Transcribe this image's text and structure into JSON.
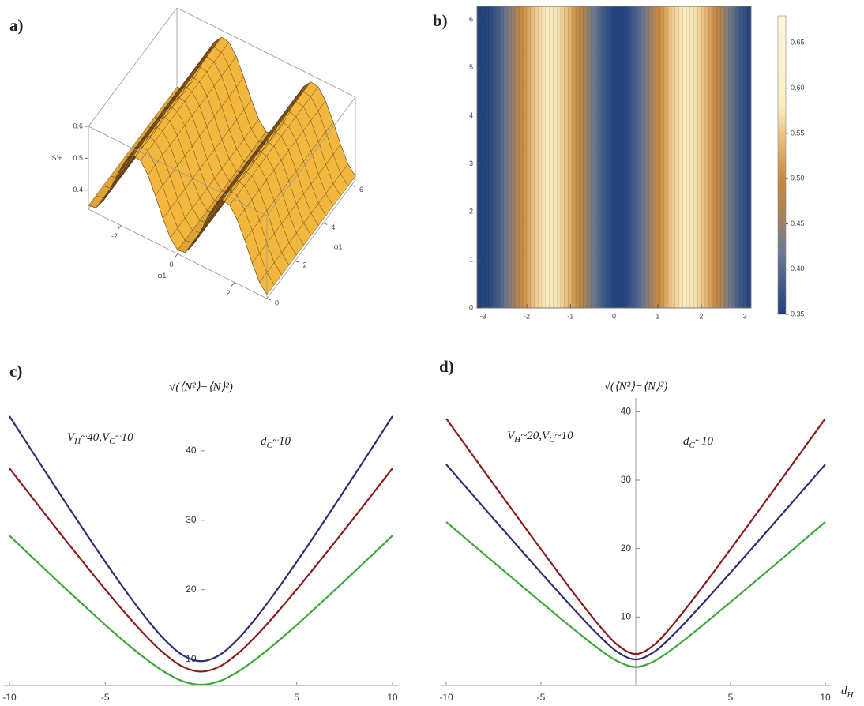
{
  "chart_data": [
    {
      "type": "surface",
      "label": "a)",
      "x": [
        -3.14,
        -2.88,
        -2.62,
        -2.36,
        -2.09,
        -1.83,
        -1.57,
        -1.31,
        -1.05,
        -0.79,
        -0.52,
        -0.26,
        0,
        0.26,
        0.52,
        0.79,
        1.05,
        1.31,
        1.57,
        1.83,
        2.09,
        2.36,
        2.62,
        2.88,
        3.14
      ],
      "values": [
        0.352,
        0.356,
        0.389,
        0.442,
        0.502,
        0.551,
        0.578,
        0.574,
        0.541,
        0.488,
        0.428,
        0.379,
        0.352,
        0.356,
        0.389,
        0.442,
        0.502,
        0.551,
        0.578,
        0.574,
        0.541,
        0.488,
        0.428,
        0.379,
        0.352
      ],
      "xlim": [
        -3.14,
        3.14
      ],
      "ylim": [
        0,
        6.28
      ],
      "zlim": [
        0.34,
        0.6
      ],
      "xticks": [
        -2,
        0,
        2
      ],
      "yticks": [
        0,
        2,
        4,
        6
      ],
      "zticks": [
        0.4,
        0.5,
        0.6
      ],
      "xlabel": "φ1",
      "ylabel": "φ1",
      "zlabel": "S'+",
      "color": "#f4b73e"
    },
    {
      "type": "density",
      "label": "b)",
      "x": [
        -3.14,
        -2.88,
        -2.62,
        -2.36,
        -2.09,
        -1.83,
        -1.57,
        -1.31,
        -1.05,
        -0.79,
        -0.52,
        -0.26,
        0,
        0.26,
        0.52,
        0.79,
        1.05,
        1.31,
        1.57,
        1.83,
        2.09,
        2.36,
        2.62,
        2.88,
        3.14
      ],
      "values": [
        0.352,
        0.356,
        0.389,
        0.442,
        0.502,
        0.551,
        0.578,
        0.574,
        0.541,
        0.488,
        0.428,
        0.379,
        0.352,
        0.356,
        0.389,
        0.442,
        0.502,
        0.551,
        0.578,
        0.574,
        0.541,
        0.488,
        0.428,
        0.379,
        0.352
      ],
      "xlim": [
        -3.14,
        3.14
      ],
      "ylim": [
        0,
        6.28
      ],
      "xticks": [
        -3,
        -2,
        -1,
        0,
        1,
        2,
        3
      ],
      "yticks": [
        0,
        1,
        2,
        3,
        4,
        5,
        6
      ],
      "clim": [
        0.35,
        0.68
      ],
      "cticks": [
        0.35,
        {
          "value": 0.4,
          "label": "0.40"
        },
        0.45,
        {
          "value": 0.5,
          "label": "0.50"
        },
        0.55,
        {
          "value": 0.6,
          "label": "0.60"
        },
        0.65
      ],
      "colorscale": [
        [
          0.35,
          "#1f417d"
        ],
        [
          0.42,
          "#6f7a92"
        ],
        [
          0.46,
          "#a8825a"
        ],
        [
          0.5,
          "#c98a3e"
        ],
        [
          0.55,
          "#eec586"
        ],
        [
          0.58,
          "#fbefc3"
        ],
        [
          0.68,
          "#fdf6da"
        ]
      ]
    },
    {
      "type": "line",
      "label": "c)",
      "x": [
        -10,
        -9,
        -8,
        -7,
        -6,
        -5,
        -4,
        -3,
        -2,
        -1,
        0,
        1,
        2,
        3,
        4,
        5,
        6,
        7,
        8,
        9,
        10
      ],
      "series": [
        {
          "color": "#2e2f6e",
          "values": [
            45.0,
            40.72,
            36.47,
            32.25,
            28.09,
            24.02,
            20.08,
            16.37,
            13.09,
            10.65,
            9.7,
            10.65,
            13.09,
            16.37,
            20.08,
            24.02,
            28.09,
            32.25,
            36.47,
            40.72,
            45.0
          ]
        },
        {
          "color": "#8c1c1c",
          "values": [
            37.5,
            33.94,
            30.4,
            26.89,
            23.44,
            20.05,
            16.78,
            13.7,
            10.99,
            8.98,
            8.2,
            8.98,
            10.99,
            13.7,
            16.78,
            20.05,
            23.44,
            26.89,
            30.4,
            33.94,
            37.5
          ]
        },
        {
          "color": "#3ca83a",
          "values": [
            27.8,
            25.17,
            22.56,
            19.97,
            17.43,
            14.93,
            12.53,
            10.28,
            8.31,
            6.86,
            6.3,
            6.86,
            8.31,
            10.28,
            12.53,
            14.93,
            17.43,
            19.97,
            22.56,
            25.17,
            27.8
          ]
        }
      ],
      "xlim": [
        -10.3,
        10.3
      ],
      "ylim": [
        6.2,
        47.5
      ],
      "xticks": [
        -10,
        -5,
        5,
        10
      ],
      "yticks": [
        10,
        20,
        30,
        40
      ],
      "ylabel": "√(⟨N²⟩−⟨N⟩²)",
      "annotations": [
        "VH~40,VC~10",
        "dC~10"
      ]
    },
    {
      "type": "line",
      "label": "d)",
      "x": [
        -10,
        -9,
        -8,
        -7,
        -6,
        -5,
        -4,
        -3,
        -2,
        -1,
        0,
        1,
        2,
        3,
        4,
        5,
        6,
        7,
        8,
        9,
        10
      ],
      "series": [
        {
          "color": "#8c1c1c",
          "values": [
            39.0,
            35.16,
            31.32,
            27.5,
            23.69,
            19.9,
            16.16,
            12.5,
            9.01,
            6.01,
            4.6,
            6.01,
            9.01,
            12.5,
            16.16,
            19.9,
            23.69,
            27.5,
            31.32,
            35.16,
            39.0
          ]
        },
        {
          "color": "#2e2f6e",
          "values": [
            32.3,
            29.12,
            25.94,
            22.77,
            19.62,
            16.48,
            13.38,
            10.35,
            7.46,
            4.97,
            3.8,
            4.97,
            7.46,
            10.35,
            13.38,
            16.48,
            19.62,
            22.77,
            25.94,
            29.12,
            32.3
          ]
        },
        {
          "color": "#3ca83a",
          "values": [
            23.9,
            21.54,
            19.19,
            16.84,
            14.5,
            12.18,
            9.87,
            7.62,
            5.46,
            3.6,
            2.7,
            3.6,
            5.46,
            7.62,
            9.87,
            12.18,
            14.5,
            16.84,
            19.19,
            21.54,
            23.9
          ]
        }
      ],
      "xlim": [
        -10.3,
        10.3
      ],
      "ylim": [
        0,
        42
      ],
      "xticks": [
        -10,
        -5,
        5,
        10
      ],
      "yticks": [
        10,
        20,
        30,
        40
      ],
      "ylabel": "√(⟨N²⟩−⟨N⟩²)",
      "xlabel": "dH",
      "annotations": [
        "VH~20,VC~10",
        "dC~10"
      ]
    }
  ]
}
